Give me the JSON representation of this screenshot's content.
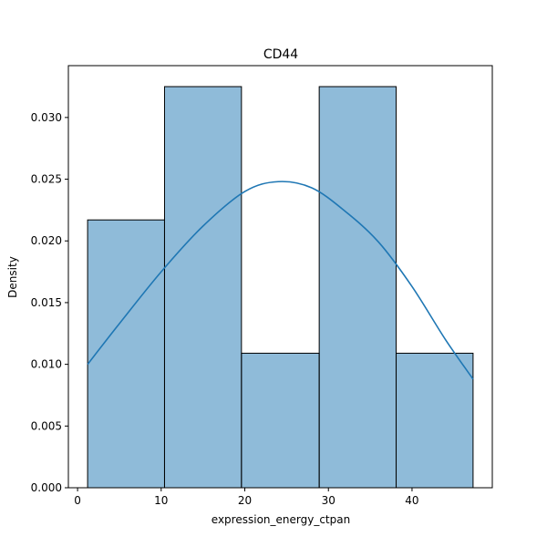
{
  "chart_data": {
    "type": "bar",
    "title": "CD44",
    "xlabel": "expression_energy_ctpan",
    "ylabel": "Density",
    "xlim": [
      -1.1,
      49.6
    ],
    "ylim": [
      0.0,
      0.0342
    ],
    "xticks": [
      0,
      10,
      20,
      30,
      40
    ],
    "yticks": [
      0.0,
      0.005,
      0.01,
      0.015,
      0.02,
      0.025,
      0.03
    ],
    "ytick_labels": [
      "0.000",
      "0.005",
      "0.010",
      "0.015",
      "0.020",
      "0.025",
      "0.030"
    ],
    "bins": [
      {
        "x0": 1.2,
        "x1": 10.4,
        "density": 0.0217
      },
      {
        "x0": 10.4,
        "x1": 19.6,
        "density": 0.0325
      },
      {
        "x0": 19.6,
        "x1": 28.9,
        "density": 0.0109
      },
      {
        "x0": 28.9,
        "x1": 38.1,
        "density": 0.0325
      },
      {
        "x0": 38.1,
        "x1": 47.3,
        "density": 0.0109
      }
    ],
    "kde": {
      "x": [
        1.2,
        5,
        10,
        15,
        20,
        24,
        28,
        32,
        36,
        40,
        44,
        47.3
      ],
      "y": [
        0.01,
        0.0133,
        0.0175,
        0.0212,
        0.024,
        0.0248,
        0.0243,
        0.0224,
        0.0199,
        0.0163,
        0.012,
        0.0088
      ]
    },
    "grid": false,
    "legend": false,
    "colors": {
      "bar_fill": "#1f77b4",
      "bar_fill_opacity": 0.5,
      "bar_edge": "#000000",
      "kde_line": "#1f77b4"
    }
  }
}
